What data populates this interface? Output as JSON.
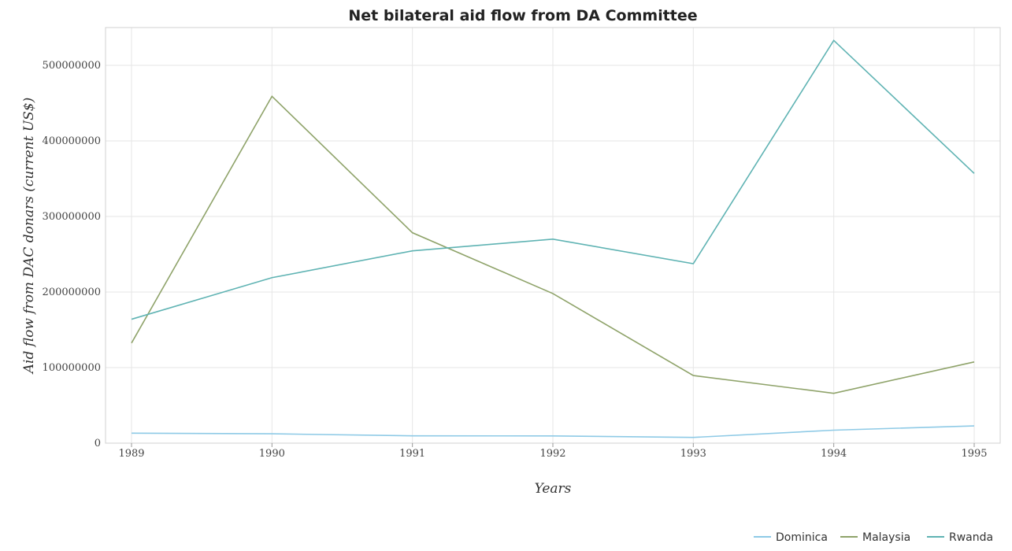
{
  "chart_data": {
    "type": "line",
    "title": "Net bilateral aid flow from DA Committee",
    "xlabel": "Years",
    "ylabel": "Aid flow from DAC donars (current US$)",
    "categories": [
      "1989",
      "1990",
      "1991",
      "1992",
      "1993",
      "1994",
      "1995"
    ],
    "ylim": [
      0,
      550000000
    ],
    "yticks": [
      0,
      100000000,
      200000000,
      300000000,
      400000000,
      500000000
    ],
    "ytick_labels": [
      "0",
      "100000000",
      "200000000",
      "300000000",
      "400000000",
      "500000000"
    ],
    "grid": true,
    "legend_position": "bottom-right",
    "series": [
      {
        "name": "Dominica",
        "color": "#8ecae6",
        "values": [
          13200000,
          12400000,
          9700000,
          9600000,
          7600000,
          17200000,
          22900000
        ]
      },
      {
        "name": "Malaysia",
        "color": "#8fa36a",
        "values": [
          132500000,
          459000000,
          278500000,
          198000000,
          89500000,
          66000000,
          107500000
        ]
      },
      {
        "name": "Rwanda",
        "color": "#5fb3b3",
        "values": [
          164000000,
          219000000,
          254500000,
          270000000,
          237500000,
          533000000,
          357000000
        ]
      }
    ]
  }
}
